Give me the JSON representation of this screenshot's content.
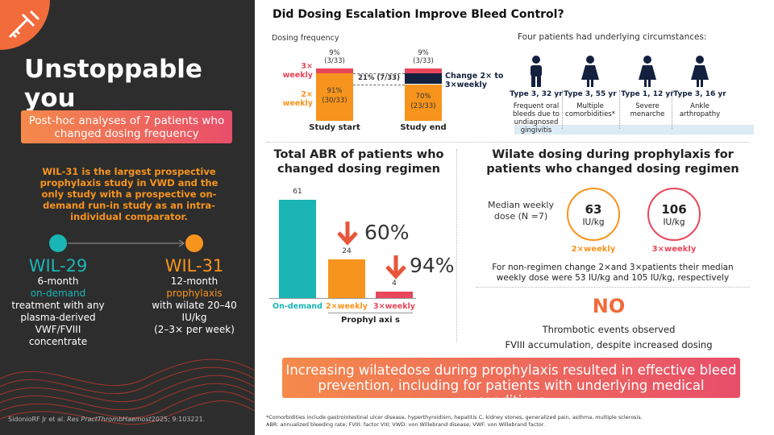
{
  "sidebar": {
    "title": "Unstoppable you",
    "banner": "Post-hoc analyses of 7 patients who changed dosing frequency",
    "intro": "WIL-31 is the largest prospective prophylaxis study in VWD and the only study with a prospective on-demand run-in study as an intra-individual comparator.",
    "studies": [
      {
        "name": "WIL-29",
        "parts": [
          "6-month",
          "on-demand",
          "treatment with any plasma-derived VWF/FVIII concentrate"
        ]
      },
      {
        "name": "WIL-31",
        "parts": [
          "12-month",
          "prophylaxis",
          "with wilate 20–40 IU/kg",
          "(2–3× per week)"
        ]
      }
    ],
    "citation": [
      "SidonioRF Jr et al.",
      "Res PractThrombHaemost",
      "2025; 9:103221."
    ]
  },
  "header": {
    "title": "Did Dosing Escalation Improve Bleed Control?"
  },
  "dosing": {
    "title": "Dosing frequency",
    "categories": [
      "Study start",
      "Study end"
    ],
    "series": [
      {
        "name": "2× weekly",
        "color": "#f7941d",
        "values": [
          91,
          70
        ],
        "value_labels": [
          "91%",
          "70%"
        ],
        "counts": [
          "(30/33)",
          "(23/33)"
        ]
      },
      {
        "name": "Change 2× to 3×weekly",
        "color": "#13213f",
        "values": [
          null,
          21
        ],
        "value_labels": [
          null,
          "21% (7/33)"
        ]
      },
      {
        "name": "3× weekly",
        "color": "#e8465a",
        "values": [
          9,
          9
        ],
        "value_labels": [
          "9%",
          "9%"
        ],
        "counts": [
          "(3/33)",
          "(3/33)"
        ]
      }
    ]
  },
  "patients": {
    "title": "Four patients had underlying circumstances:",
    "items": [
      {
        "label": "Type 3, 32 yr",
        "note": "Frequent oral bleeds due to undiagnosed gingivitis"
      },
      {
        "label": "Type 3, 55 yr",
        "note": "Multiple comorbidities*"
      },
      {
        "label": "Type 1, 12 yr",
        "note": "Severe menarche"
      },
      {
        "label": "Type 3, 16 yr",
        "note": "Ankle arthropathy"
      }
    ]
  },
  "abr": {
    "title": "Total ABR of patients who changed dosing regimen",
    "categories": [
      "On-demand",
      "2×weekly",
      "3×weekly"
    ],
    "values": [
      61,
      24,
      4
    ],
    "colors": [
      "#1bb5b5",
      "#f7941d",
      "#e8465a"
    ],
    "reductions": [
      "60%",
      "94%"
    ],
    "group_label": "Prophyl axi s"
  },
  "wilate": {
    "title": "Wilate dosing during prophylaxis for patients who changed dosing regimen",
    "dose_label": "Median weekly dose (N =7)",
    "doses": [
      {
        "value": "63",
        "unit": "IU/kg",
        "label": "2×weekly",
        "color": "#f7941d"
      },
      {
        "value": "106",
        "unit": "IU/kg",
        "label": "3×weekly",
        "color": "#e8465a"
      }
    ],
    "note": "For non-regimen change 2×and 3×patients their median weekly dose were 53 IU/kg and 105 IU/kg, respectively"
  },
  "safety": {
    "headline": "NO",
    "lines": [
      "Thrombotic events observed",
      "FVIII accumulation, despite increased dosing"
    ]
  },
  "conclusion": "Increasing wilatedose during prophylaxis resulted in effective bleed prevention, including for patients with underlying medical conditions",
  "footnotes": [
    "*Comorbidities include gastrointestinal ulcer disease, hyperthyroidism, hepatitis C, kidney stones, generalized pain, asthma, multiple sclerosis.",
    "ABR: annualized bleeding rate; FVIII: factor VIII; VWD: von Willebrand disease; VWF: von Willebrand factor."
  ]
}
